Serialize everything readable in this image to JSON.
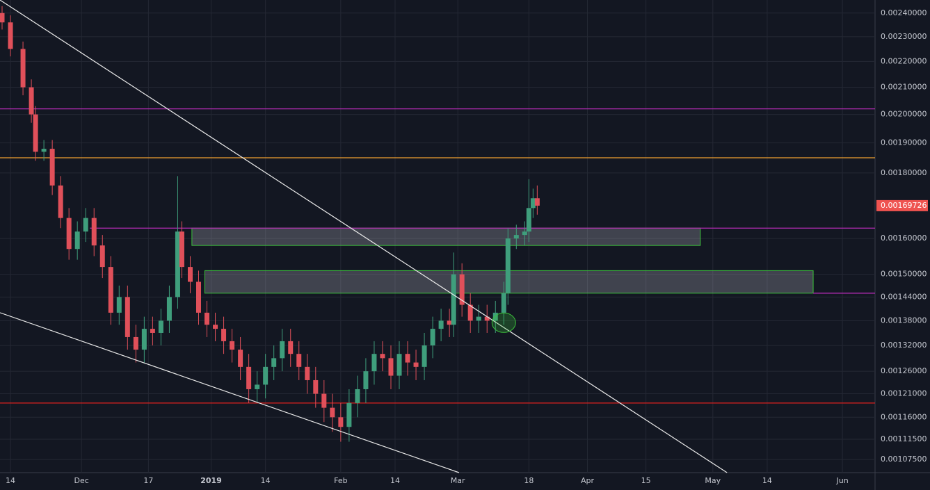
{
  "chart_data": {
    "type": "candlestick",
    "log_scale": true,
    "grid": true,
    "xlim": [
      -2.5,
      206.8
    ],
    "ylim": [
      0.00105,
      0.002457
    ],
    "xticks": [
      {
        "value": 0,
        "label": "14"
      },
      {
        "value": 17,
        "label": "Dec"
      },
      {
        "value": 33,
        "label": "17"
      },
      {
        "value": 48,
        "label": "2019"
      },
      {
        "value": 61,
        "label": "14"
      },
      {
        "value": 79,
        "label": "Feb"
      },
      {
        "value": 92,
        "label": "14"
      },
      {
        "value": 107,
        "label": "Mar"
      },
      {
        "value": 124,
        "label": "18"
      },
      {
        "value": 138,
        "label": "Apr"
      },
      {
        "value": 152,
        "label": "15"
      },
      {
        "value": 168,
        "label": "May"
      },
      {
        "value": 181,
        "label": "14"
      },
      {
        "value": 199,
        "label": "Jun"
      }
    ],
    "yticks": [
      {
        "value": 0.0024,
        "label": "0.00240000"
      },
      {
        "value": 0.0023,
        "label": "0.00230000"
      },
      {
        "value": 0.0022,
        "label": "0.00220000"
      },
      {
        "value": 0.0021,
        "label": "0.00210000"
      },
      {
        "value": 0.002,
        "label": "0.00200000"
      },
      {
        "value": 0.0019,
        "label": "0.00190000"
      },
      {
        "value": 0.0018,
        "label": "0.00180000"
      },
      {
        "value": 0.0016,
        "label": "0.00160000"
      },
      {
        "value": 0.0015,
        "label": "0.00150000"
      },
      {
        "value": 0.00144,
        "label": "0.00144000"
      },
      {
        "value": 0.00138,
        "label": "0.00138000"
      },
      {
        "value": 0.00132,
        "label": "0.00132000"
      },
      {
        "value": 0.00126,
        "label": "0.00126000"
      },
      {
        "value": 0.00121,
        "label": "0.00121000"
      },
      {
        "value": 0.00116,
        "label": "0.00116000"
      },
      {
        "value": 0.001115,
        "label": "0.00111500"
      },
      {
        "value": 0.001075,
        "label": "0.00107500"
      }
    ],
    "up_color": "#3f9e7c",
    "down_color": "#e0505a",
    "x": [
      -2,
      0,
      3,
      5,
      6,
      8,
      10,
      12,
      14,
      16,
      18,
      20,
      22,
      24,
      26,
      28,
      30,
      32,
      34,
      36,
      38,
      40,
      41,
      43,
      45,
      47,
      49,
      51,
      53,
      55,
      57,
      59,
      61,
      63,
      65,
      67,
      69,
      71,
      73,
      75,
      77,
      79,
      81,
      83,
      85,
      87,
      89,
      91,
      93,
      95,
      97,
      99,
      101,
      103,
      105,
      106,
      108,
      110,
      112,
      114,
      116,
      118,
      119,
      121,
      123,
      124,
      125,
      126
    ],
    "open": [
      0.0024,
      0.00236,
      0.00225,
      0.0021,
      0.002,
      0.00187,
      0.00188,
      0.00176,
      0.00166,
      0.00157,
      0.00162,
      0.00166,
      0.00158,
      0.00152,
      0.0014,
      0.00144,
      0.00134,
      0.00131,
      0.00136,
      0.00135,
      0.00138,
      0.00144,
      0.00162,
      0.00152,
      0.00148,
      0.0014,
      0.00137,
      0.00136,
      0.00133,
      0.00131,
      0.00127,
      0.00122,
      0.00123,
      0.00127,
      0.00129,
      0.00133,
      0.0013,
      0.00127,
      0.00124,
      0.00121,
      0.00118,
      0.00116,
      0.00114,
      0.00119,
      0.00122,
      0.00126,
      0.0013,
      0.00129,
      0.00125,
      0.0013,
      0.00128,
      0.00127,
      0.00132,
      0.00136,
      0.00138,
      0.00137,
      0.0015,
      0.00142,
      0.00138,
      0.00139,
      0.00138,
      0.0014,
      0.00145,
      0.0016,
      0.00161,
      0.00162,
      0.00169,
      0.00172
    ],
    "high": [
      0.00243,
      0.00239,
      0.00228,
      0.00213,
      0.00203,
      0.00191,
      0.00191,
      0.00179,
      0.00169,
      0.00165,
      0.00169,
      0.00169,
      0.00161,
      0.00155,
      0.00147,
      0.00147,
      0.00137,
      0.00139,
      0.00139,
      0.00141,
      0.00147,
      0.00179,
      0.00165,
      0.00155,
      0.00151,
      0.00143,
      0.0014,
      0.00139,
      0.00136,
      0.00134,
      0.0013,
      0.00126,
      0.0013,
      0.00132,
      0.00136,
      0.00136,
      0.00133,
      0.0013,
      0.00127,
      0.00124,
      0.00121,
      0.00119,
      0.00122,
      0.00125,
      0.00129,
      0.00133,
      0.00133,
      0.00132,
      0.00133,
      0.00133,
      0.00131,
      0.00135,
      0.00139,
      0.00141,
      0.00141,
      0.00156,
      0.00153,
      0.00145,
      0.00142,
      0.00142,
      0.00143,
      0.00148,
      0.00163,
      0.00164,
      0.00165,
      0.00178,
      0.00175,
      0.00176
    ],
    "low": [
      0.00233,
      0.00222,
      0.00207,
      0.00197,
      0.00184,
      0.00184,
      0.00173,
      0.00163,
      0.00154,
      0.00154,
      0.00159,
      0.00155,
      0.00149,
      0.00137,
      0.00137,
      0.00131,
      0.00128,
      0.00128,
      0.00132,
      0.00132,
      0.00135,
      0.00141,
      0.00149,
      0.00145,
      0.00137,
      0.00134,
      0.00133,
      0.0013,
      0.00128,
      0.00124,
      0.00119,
      0.00119,
      0.0012,
      0.00124,
      0.00126,
      0.00127,
      0.00124,
      0.00121,
      0.00118,
      0.00115,
      0.00113,
      0.00111,
      0.00111,
      0.00116,
      0.00119,
      0.00123,
      0.00126,
      0.00122,
      0.00122,
      0.00125,
      0.00124,
      0.00124,
      0.00129,
      0.00133,
      0.00134,
      0.00134,
      0.00139,
      0.00135,
      0.00135,
      0.00135,
      0.00135,
      0.00137,
      0.00142,
      0.00157,
      0.00158,
      0.00159,
      0.00166,
      0.00167
    ],
    "close": [
      0.00236,
      0.00225,
      0.0021,
      0.002,
      0.00187,
      0.00188,
      0.00176,
      0.00166,
      0.00157,
      0.00162,
      0.00166,
      0.00158,
      0.00152,
      0.0014,
      0.00144,
      0.00134,
      0.00131,
      0.00136,
      0.00135,
      0.00138,
      0.00144,
      0.00162,
      0.00152,
      0.00148,
      0.0014,
      0.00137,
      0.00136,
      0.00133,
      0.00131,
      0.00127,
      0.00122,
      0.00123,
      0.00127,
      0.00129,
      0.00133,
      0.0013,
      0.00127,
      0.00124,
      0.00121,
      0.00118,
      0.00116,
      0.00114,
      0.00119,
      0.00122,
      0.00126,
      0.0013,
      0.00129,
      0.00125,
      0.0013,
      0.00128,
      0.00127,
      0.00132,
      0.00136,
      0.00138,
      0.00137,
      0.0015,
      0.00142,
      0.00138,
      0.00139,
      0.00138,
      0.0014,
      0.00145,
      0.0016,
      0.00161,
      0.00162,
      0.00169,
      0.00172,
      0.00169726
    ],
    "last_price": 0.00169726,
    "last_price_color": "#ef5350",
    "hlines": [
      {
        "price": 0.00202,
        "color": "#b52bb5",
        "x0": -2.5
      },
      {
        "price": 0.00185,
        "color": "#f0a030",
        "x0": -2.5
      },
      {
        "price": 0.00119,
        "color": "#e0201e",
        "x0": -2.5
      },
      {
        "price": 0.00163,
        "color": "#b52bb5",
        "x0": 19
      },
      {
        "price": 0.00145,
        "color": "#b52bb5",
        "x0": 192
      }
    ],
    "boxes": [
      {
        "x0": 43.4,
        "x1": 165,
        "low": 0.00158,
        "high": 0.00163
      },
      {
        "x0": 46.5,
        "x1": 192,
        "low": 0.00145,
        "high": 0.00151
      }
    ],
    "trendlines": [
      {
        "x0": -2.5,
        "y0": 0.002457,
        "x1": 171.4,
        "y1": 0.00105
      },
      {
        "x0": -2.5,
        "y0": 0.0014,
        "x1": 107.3,
        "y1": 0.00105
      }
    ],
    "marker": {
      "x": 118,
      "price": 0.001375
    }
  }
}
